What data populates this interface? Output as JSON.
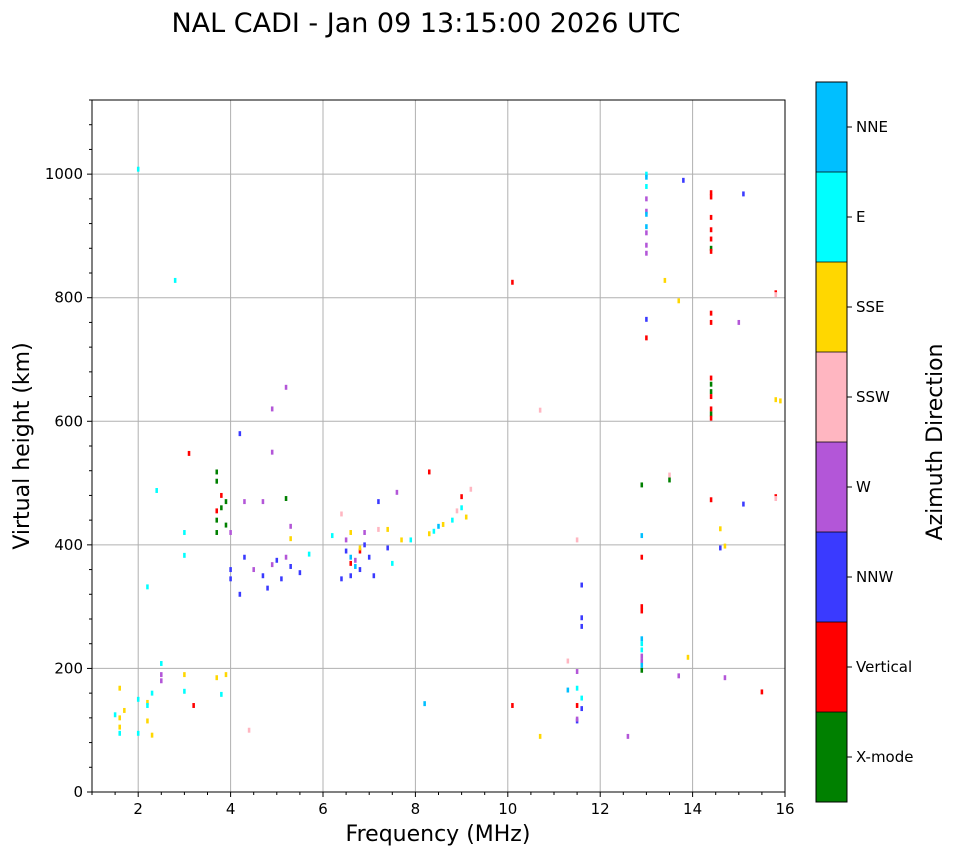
{
  "chart_data": {
    "type": "scatter",
    "title": "NAL CADI - Jan 09 13:15:00 2026 UTC",
    "xlabel": "Frequency (MHz)",
    "ylabel": "Virtual height (km)",
    "xlim": [
      1,
      16
    ],
    "ylim": [
      0,
      1120
    ],
    "xticks": [
      2,
      4,
      6,
      8,
      10,
      12,
      14,
      16
    ],
    "yticks": [
      0,
      200,
      400,
      600,
      800,
      1000
    ],
    "grid": true,
    "legend": {
      "title": "Azimuth Direction",
      "placement": "right colorbar",
      "categories": [
        "X-mode",
        "Vertical",
        "NNW",
        "W",
        "SSW",
        "SSE",
        "E",
        "NNE"
      ],
      "colors": [
        "#008000",
        "#ff0000",
        "#3a3aff",
        "#b356d8",
        "#ffb6c1",
        "#ffd700",
        "#00ffff",
        "#00bfff"
      ]
    },
    "bin_width_mhz": 0.1,
    "series": [
      {
        "name": "X-mode",
        "points": [
          [
            3.7,
            503
          ],
          [
            3.7,
            518
          ],
          [
            3.8,
            460
          ],
          [
            3.7,
            440
          ],
          [
            3.7,
            420
          ],
          [
            3.9,
            432
          ],
          [
            5.2,
            475
          ],
          [
            3.9,
            470
          ],
          [
            12.9,
            497
          ],
          [
            12.9,
            197
          ],
          [
            14.4,
            880
          ],
          [
            14.4,
            612
          ],
          [
            14.4,
            648
          ],
          [
            14.4,
            660
          ],
          [
            13.5,
            505
          ]
        ]
      },
      {
        "name": "Vertical",
        "points": [
          [
            3.1,
            548
          ],
          [
            3.2,
            140
          ],
          [
            3.8,
            480
          ],
          [
            3.7,
            455
          ],
          [
            8.3,
            518
          ],
          [
            9.0,
            478
          ],
          [
            10.1,
            825
          ],
          [
            10.1,
            140
          ],
          [
            12.9,
            380
          ],
          [
            12.9,
            300
          ],
          [
            12.9,
            293
          ],
          [
            13.0,
            735
          ],
          [
            14.4,
            970
          ],
          [
            14.4,
            963
          ],
          [
            14.4,
            930
          ],
          [
            14.4,
            910
          ],
          [
            14.4,
            895
          ],
          [
            14.4,
            875
          ],
          [
            14.4,
            775
          ],
          [
            14.4,
            760
          ],
          [
            14.4,
            670
          ],
          [
            14.4,
            640
          ],
          [
            14.4,
            620
          ],
          [
            14.4,
            605
          ],
          [
            14.4,
            473
          ],
          [
            15.8,
            808
          ],
          [
            15.8,
            478
          ],
          [
            15.5,
            162
          ],
          [
            11.5,
            140
          ],
          [
            6.6,
            370
          ],
          [
            6.8,
            390
          ]
        ]
      },
      {
        "name": "NNW",
        "points": [
          [
            4.2,
            580
          ],
          [
            4.2,
            320
          ],
          [
            4.0,
            345
          ],
          [
            4.0,
            360
          ],
          [
            4.3,
            380
          ],
          [
            4.7,
            350
          ],
          [
            4.8,
            330
          ],
          [
            5.0,
            375
          ],
          [
            5.1,
            345
          ],
          [
            5.3,
            365
          ],
          [
            5.5,
            355
          ],
          [
            6.4,
            345
          ],
          [
            6.5,
            390
          ],
          [
            6.6,
            350
          ],
          [
            6.8,
            360
          ],
          [
            6.9,
            400
          ],
          [
            7.0,
            380
          ],
          [
            7.1,
            350
          ],
          [
            7.2,
            470
          ],
          [
            7.4,
            395
          ],
          [
            11.6,
            335
          ],
          [
            11.6,
            282
          ],
          [
            11.6,
            268
          ],
          [
            11.6,
            135
          ],
          [
            11.5,
            115
          ],
          [
            13.8,
            990
          ],
          [
            15.1,
            968
          ],
          [
            15.1,
            466
          ],
          [
            13.0,
            765
          ],
          [
            14.6,
            395
          ]
        ]
      },
      {
        "name": "W",
        "points": [
          [
            4.9,
            620
          ],
          [
            5.2,
            655
          ],
          [
            4.9,
            550
          ],
          [
            4.7,
            470
          ],
          [
            5.3,
            430
          ],
          [
            4.3,
            470
          ],
          [
            4.0,
            420
          ],
          [
            4.5,
            360
          ],
          [
            4.9,
            368
          ],
          [
            5.2,
            380
          ],
          [
            6.5,
            408
          ],
          [
            6.7,
            375
          ],
          [
            6.9,
            420
          ],
          [
            7.6,
            485
          ],
          [
            13.0,
            960
          ],
          [
            13.0,
            940
          ],
          [
            13.0,
            905
          ],
          [
            13.0,
            885
          ],
          [
            13.0,
            872
          ],
          [
            12.9,
            220
          ],
          [
            12.9,
            212
          ],
          [
            12.6,
            90
          ],
          [
            13.7,
            188
          ],
          [
            14.7,
            185
          ],
          [
            15.0,
            760
          ],
          [
            11.5,
            195
          ],
          [
            11.5,
            118
          ],
          [
            2.5,
            190
          ],
          [
            2.5,
            180
          ]
        ]
      },
      {
        "name": "SSW",
        "points": [
          [
            10.7,
            618
          ],
          [
            9.2,
            490
          ],
          [
            11.3,
            212
          ],
          [
            11.5,
            408
          ],
          [
            4.4,
            100
          ],
          [
            15.8,
            805
          ],
          [
            15.8,
            475
          ],
          [
            6.4,
            450
          ],
          [
            7.2,
            425
          ],
          [
            8.9,
            455
          ],
          [
            13.5,
            513
          ]
        ]
      },
      {
        "name": "SSE",
        "points": [
          [
            1.6,
            168
          ],
          [
            1.6,
            120
          ],
          [
            1.7,
            132
          ],
          [
            1.6,
            105
          ],
          [
            2.3,
            92
          ],
          [
            2.2,
            115
          ],
          [
            2.2,
            145
          ],
          [
            3.0,
            190
          ],
          [
            3.7,
            185
          ],
          [
            3.9,
            190
          ],
          [
            5.3,
            410
          ],
          [
            6.6,
            420
          ],
          [
            6.8,
            395
          ],
          [
            7.4,
            425
          ],
          [
            7.7,
            408
          ],
          [
            8.3,
            418
          ],
          [
            8.6,
            433
          ],
          [
            9.1,
            445
          ],
          [
            10.7,
            90
          ],
          [
            13.4,
            828
          ],
          [
            13.7,
            795
          ],
          [
            13.9,
            218
          ],
          [
            14.6,
            426
          ],
          [
            14.7,
            398
          ],
          [
            15.8,
            635
          ],
          [
            15.9,
            633
          ]
        ]
      },
      {
        "name": "E",
        "points": [
          [
            2.0,
            1008
          ],
          [
            2.2,
            332
          ],
          [
            2.4,
            488
          ],
          [
            2.8,
            828
          ],
          [
            3.0,
            420
          ],
          [
            3.0,
            383
          ],
          [
            3.0,
            163
          ],
          [
            3.8,
            158
          ],
          [
            2.5,
            208
          ],
          [
            2.3,
            160
          ],
          [
            2.2,
            140
          ],
          [
            2.0,
            150
          ],
          [
            1.6,
            95
          ],
          [
            1.5,
            125
          ],
          [
            2.0,
            95
          ],
          [
            5.7,
            385
          ],
          [
            6.2,
            415
          ],
          [
            7.5,
            370
          ],
          [
            7.9,
            408
          ],
          [
            8.4,
            422
          ],
          [
            8.8,
            440
          ],
          [
            9.0,
            460
          ],
          [
            13.0,
            1000
          ],
          [
            13.0,
            980
          ],
          [
            12.9,
            240
          ],
          [
            12.9,
            230
          ],
          [
            11.6,
            152
          ],
          [
            11.5,
            168
          ]
        ]
      },
      {
        "name": "NNE",
        "points": [
          [
            8.2,
            143
          ],
          [
            8.5,
            430
          ],
          [
            12.9,
            415
          ],
          [
            12.9,
            248
          ],
          [
            12.9,
            205
          ],
          [
            13.0,
            995
          ],
          [
            13.0,
            935
          ],
          [
            13.0,
            915
          ],
          [
            11.3,
            165
          ],
          [
            6.7,
            365
          ],
          [
            6.6,
            380
          ]
        ]
      }
    ]
  }
}
